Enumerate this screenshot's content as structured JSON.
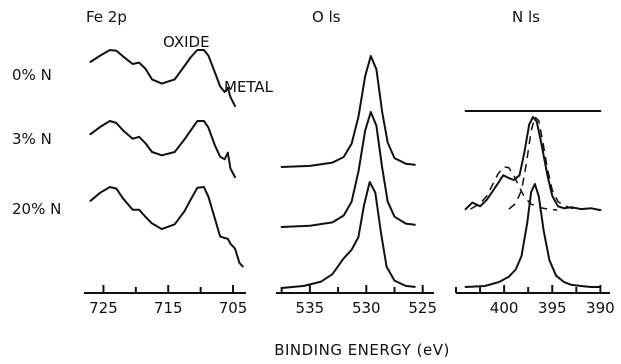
{
  "chart_data": {
    "type": "line",
    "xlabel": "BINDING ENERGY (eV)",
    "rows": [
      "0% N",
      "3% N",
      "20% N"
    ],
    "annotations": {
      "oxide": "OXIDE",
      "metal": "METAL"
    },
    "panels": [
      {
        "title": "Fe 2p",
        "xlim": [
          728,
          703
        ],
        "ticks": [
          "725",
          "715",
          "705"
        ],
        "tick_values": [
          725,
          715,
          705
        ],
        "series": [
          {
            "row": "0% N",
            "x": [
              727,
              725.5,
              724,
              723,
              722,
              720.5,
              719.5,
              718.5,
              717.5,
              716,
              714,
              712.5,
              711.5,
              710.5,
              709.5,
              708.8,
              707.8,
              707,
              706.3,
              705.8,
              705.4,
              704.7
            ],
            "y": [
              0.83,
              0.92,
              1.0,
              0.99,
              0.91,
              0.8,
              0.82,
              0.73,
              0.58,
              0.52,
              0.58,
              0.77,
              0.9,
              1.0,
              1.0,
              0.92,
              0.68,
              0.48,
              0.4,
              0.46,
              0.33,
              0.2
            ]
          },
          {
            "row": "3% N",
            "x": [
              727,
              725.5,
              724,
              723,
              722,
              720.5,
              719.5,
              718.5,
              717.5,
              716,
              714,
              712.5,
              711.5,
              710.5,
              709.5,
              708.8,
              707.8,
              707,
              706.3,
              705.8,
              705.4,
              704.7
            ],
            "y": [
              0.8,
              0.91,
              1.0,
              0.97,
              0.86,
              0.73,
              0.76,
              0.66,
              0.53,
              0.48,
              0.53,
              0.72,
              0.86,
              1.0,
              1.0,
              0.9,
              0.63,
              0.46,
              0.42,
              0.52,
              0.28,
              0.15
            ]
          },
          {
            "row": "20% N",
            "x": [
              727,
              725.5,
              724,
              723,
              722,
              720.5,
              719.5,
              718.5,
              717.5,
              716,
              714,
              712.5,
              711.5,
              710.5,
              709.5,
              708.8,
              707.8,
              707,
              706.3,
              705.8,
              705.4,
              704.7,
              704,
              703.5
            ],
            "y": [
              0.83,
              0.93,
              1.0,
              0.98,
              0.86,
              0.72,
              0.72,
              0.63,
              0.55,
              0.48,
              0.54,
              0.7,
              0.85,
              0.99,
              1.0,
              0.88,
              0.61,
              0.39,
              0.37,
              0.36,
              0.3,
              0.24,
              0.06,
              0.02
            ]
          }
        ]
      },
      {
        "title": "O ls",
        "xlim": [
          538,
          524
        ],
        "ticks": [
          "535",
          "530",
          "525"
        ],
        "tick_values": [
          535,
          530,
          525
        ],
        "series": [
          {
            "row": "0% N",
            "x": [
              537.5,
              535,
              533,
              532,
              531.3,
              530.7,
              530.1,
              529.6,
              529.1,
              528.6,
              528.1,
              527.5,
              526.5,
              525.7
            ],
            "y": [
              0.0,
              0.01,
              0.04,
              0.09,
              0.21,
              0.45,
              0.82,
              1.0,
              0.88,
              0.5,
              0.22,
              0.08,
              0.03,
              0.02
            ]
          },
          {
            "row": "3% N",
            "x": [
              537.5,
              535,
              533,
              532,
              531.3,
              530.7,
              530.1,
              529.6,
              529.1,
              528.6,
              528.1,
              527.5,
              526.5,
              525.7
            ],
            "y": [
              0.0,
              0.01,
              0.04,
              0.1,
              0.22,
              0.48,
              0.84,
              1.0,
              0.88,
              0.52,
              0.22,
              0.09,
              0.03,
              0.02
            ]
          },
          {
            "row": "20% N",
            "x": [
              537.5,
              535.5,
              534,
              533,
              532,
              531.3,
              530.7,
              530.2,
              529.7,
              529.2,
              528.7,
              528.2,
              527.5,
              526.5,
              525.7
            ],
            "y": [
              0.0,
              0.02,
              0.06,
              0.13,
              0.28,
              0.36,
              0.48,
              0.78,
              1.0,
              0.9,
              0.52,
              0.2,
              0.07,
              0.02,
              0.01
            ]
          }
        ]
      },
      {
        "title": "N ls",
        "xlim": [
          405,
          389
        ],
        "ticks": [
          "400",
          "395",
          "390"
        ],
        "tick_values": [
          400,
          395,
          390
        ],
        "series": [
          {
            "row": "0% N",
            "x": [
              404,
              403,
              402,
              401,
              400,
              399,
              398,
              397,
              396,
              395,
              394,
              393,
              392,
              391,
              390
            ],
            "y": [
              0.0,
              0.02,
              -0.01,
              0.02,
              0.0,
              0.02,
              -0.01,
              0.02,
              0.0,
              0.02,
              -0.01,
              0.01,
              0.02,
              -0.01,
              0.0
            ]
          },
          {
            "row": "3% N",
            "x": [
              404,
              403.3,
              402.5,
              401.8,
              401.2,
              400.6,
              400.1,
              399.5,
              399,
              398.4,
              397.9,
              397.4,
              397,
              396.6,
              396.1,
              395.5,
              395,
              394.4,
              393.8,
              393,
              392,
              391,
              390
            ],
            "y": [
              0.02,
              0.09,
              0.05,
              0.12,
              0.21,
              0.3,
              0.38,
              0.35,
              0.33,
              0.38,
              0.62,
              0.92,
              1.0,
              0.95,
              0.7,
              0.38,
              0.16,
              0.05,
              0.03,
              0.04,
              0.02,
              0.03,
              0.01
            ]
          },
          {
            "row": "20% N",
            "x": [
              404,
              402,
              400.5,
              399.5,
              398.8,
              398.2,
              397.6,
              397.2,
              396.8,
              396.4,
              395.9,
              395.3,
              394.6,
              393.8,
              393,
              392,
              391,
              390
            ],
            "y": [
              0.0,
              0.01,
              0.05,
              0.1,
              0.17,
              0.3,
              0.62,
              0.92,
              1.0,
              0.88,
              0.55,
              0.26,
              0.11,
              0.05,
              0.02,
              0.01,
              0.0,
              0.0
            ]
          }
        ],
        "fit_components": [
          {
            "row": "3% N",
            "x": [
              403.5,
              402.5,
              401.8,
              401.2,
              400.6,
              400,
              399.5,
              399,
              398.5,
              398,
              397.3,
              396.5,
              395.5,
              394.5
            ],
            "y": [
              0.02,
              0.08,
              0.16,
              0.28,
              0.4,
              0.47,
              0.46,
              0.38,
              0.27,
              0.17,
              0.08,
              0.04,
              0.02,
              0.01
            ]
          },
          {
            "row": "3% N",
            "x": [
              399.5,
              398.8,
              398.2,
              397.7,
              397.2,
              396.8,
              396.4,
              396,
              395.5,
              395,
              394.4,
              393.8,
              393,
              392.2
            ],
            "y": [
              0.02,
              0.08,
              0.22,
              0.5,
              0.85,
              1.0,
              0.96,
              0.75,
              0.45,
              0.22,
              0.1,
              0.06,
              0.03,
              0.02
            ]
          }
        ]
      }
    ]
  }
}
